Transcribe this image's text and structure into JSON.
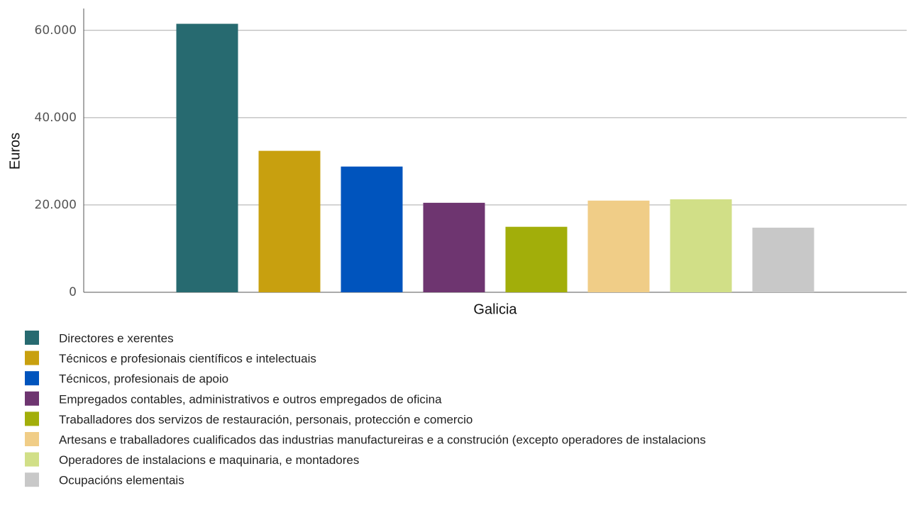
{
  "chart_data": {
    "type": "bar",
    "y_label": "Euros",
    "categories": [
      "Galicia"
    ],
    "series": [
      {
        "name": "Directores e xerentes",
        "color": "#276a70",
        "values": [
          61500
        ]
      },
      {
        "name": "Técnicos e profesionais científicos e intelectuais",
        "color": "#c8a00f",
        "values": [
          32400
        ]
      },
      {
        "name": "Técnicos, profesionais de apoio",
        "color": "#0054bd",
        "values": [
          28800
        ]
      },
      {
        "name": "Empregados contables, administrativos e outros empregados de oficina",
        "color": "#6e3570",
        "values": [
          20500
        ]
      },
      {
        "name": "Traballadores dos servizos de restauración, personais, protección e comercio",
        "color": "#a2ae0a",
        "values": [
          15000
        ]
      },
      {
        "name": "Artesans e traballadores cualificados das industrias manufactureiras e a construción (excepto operadores de instalacions",
        "color": "#f0cd87",
        "values": [
          21000
        ]
      },
      {
        "name": "Operadores de instalacions e maquinaria, e montadores",
        "color": "#d1df87",
        "values": [
          21300
        ]
      },
      {
        "name": "Ocupacións elementais",
        "color": "#c8c8c8",
        "values": [
          14800
        ]
      }
    ],
    "ylim": [
      0,
      65000
    ],
    "yticks": [
      0,
      {
        "value": 20000,
        "label": "20.000"
      },
      {
        "value": 40000,
        "label": "40.000"
      },
      {
        "value": 60000,
        "label": "60.000"
      }
    ],
    "grid": true,
    "legend": "bottom"
  }
}
